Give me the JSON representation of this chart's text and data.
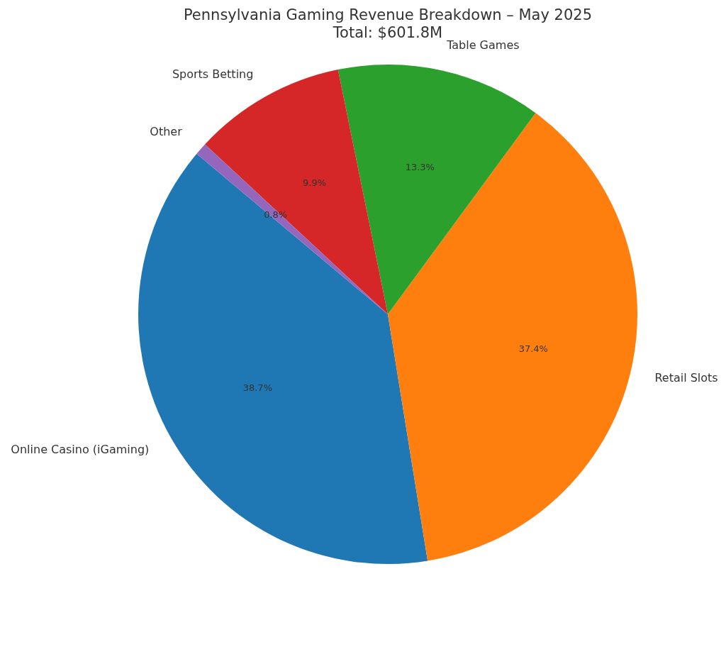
{
  "chart_data": {
    "type": "pie",
    "title": "Pennsylvania Gaming Revenue Breakdown – May 2025",
    "subtitle": "Total: $601.8M",
    "categories": [
      "Online Casino (iGaming)",
      "Retail Slots",
      "Table Games",
      "Sports Betting",
      "Other"
    ],
    "values": [
      38.7,
      37.4,
      13.3,
      9.9,
      0.8
    ],
    "colors": [
      "#1f77b4",
      "#ff7f0e",
      "#2ca02c",
      "#d62728",
      "#9467bd"
    ],
    "value_labels": [
      "38.7%",
      "37.4%",
      "13.3%",
      "9.9%",
      "0.8%"
    ]
  }
}
